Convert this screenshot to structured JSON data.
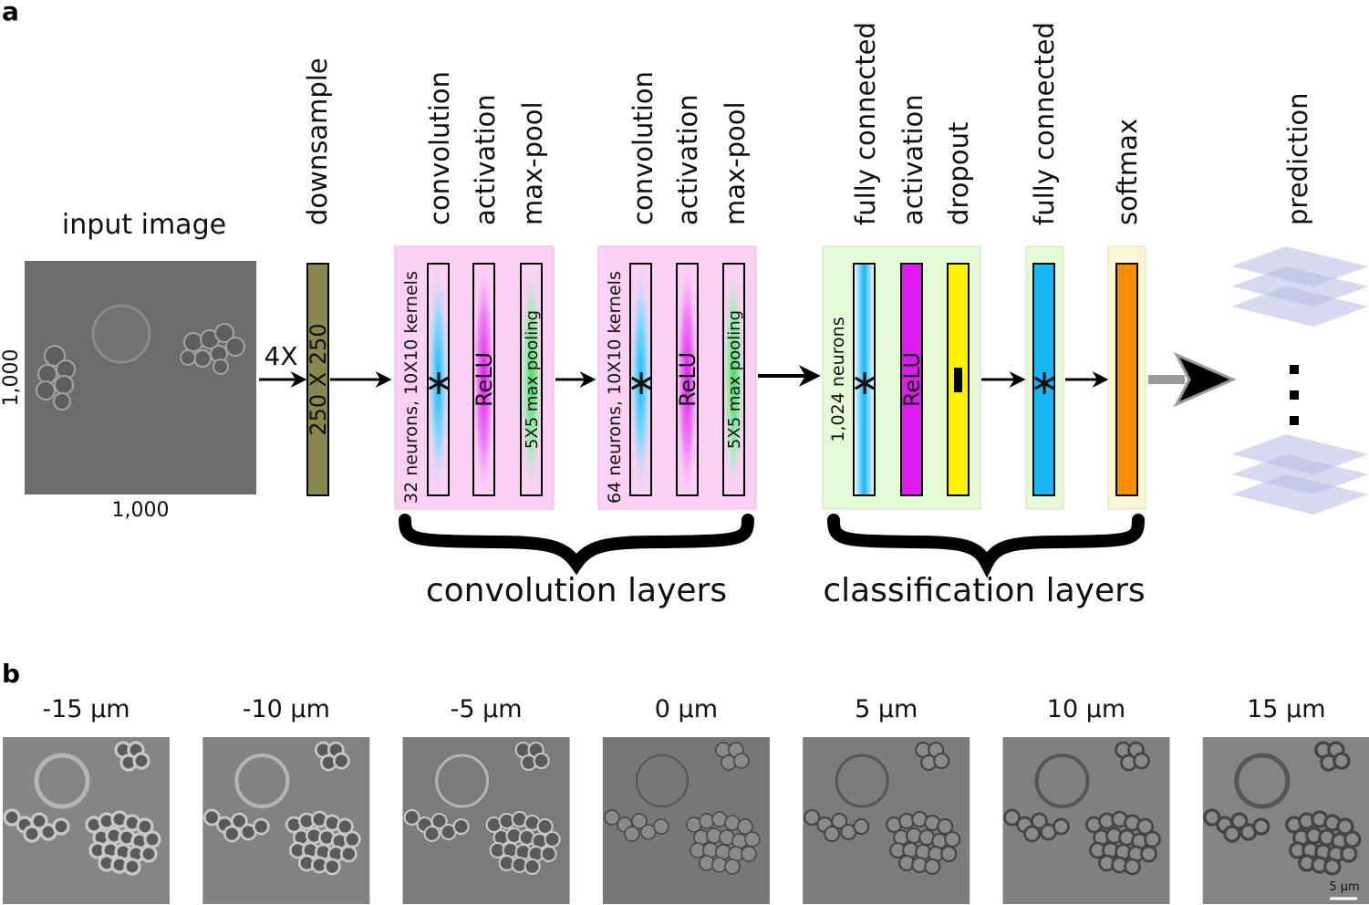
{
  "panel_a": {
    "letter": "a",
    "input": {
      "title": "input image",
      "width_label": "1,000",
      "height_label": "1,000"
    },
    "downsample": {
      "factor": "4X",
      "header": "downsample",
      "size": "250 X 250"
    },
    "conv_block_1": {
      "headers": [
        "convolution",
        "activation",
        "max-pool"
      ],
      "neurons": "32 neurons, 10X10 kernels",
      "conv_symbol": "∗",
      "activation": "ReLU",
      "pool": "5X5 max pooling"
    },
    "conv_block_2": {
      "headers": [
        "convolution",
        "activation",
        "max-pool"
      ],
      "neurons": "64 neurons, 10X10 kernels",
      "conv_symbol": "∗",
      "activation": "ReLU",
      "pool": "5X5 max pooling"
    },
    "fc_block": {
      "headers": [
        "fully connected",
        "activation",
        "dropout"
      ],
      "neurons": "1,024 neurons",
      "fc_symbol": "∗",
      "activation": "ReLU"
    },
    "fc2": {
      "header": "fully connected",
      "symbol": "∗"
    },
    "softmax": {
      "header": "softmax"
    },
    "prediction": {
      "header": "prediction"
    },
    "brace_labels": {
      "convolution": "convolution layers",
      "classification": "classification layers"
    },
    "colors": {
      "conv_bg": "#fbd0f5",
      "fc_bg": "#e6f9d6",
      "softmax_bg": "#fbf6d3",
      "downsample": "#8a8650",
      "conv_cyan": "#17b8f5",
      "relu_magenta": "#e019f0",
      "pool_green": "#49d96a",
      "dropout_yellow": "#fff200",
      "softmax_orange": "#ff8c00",
      "prediction_lavender": "#b8b9e3"
    }
  },
  "panel_b": {
    "letter": "b",
    "offsets": [
      "-15 µm",
      "-10 µm",
      "-5 µm",
      "0 µm",
      "5 µm",
      "10 µm",
      "15 µm"
    ],
    "scale_bar": "5 µm"
  }
}
